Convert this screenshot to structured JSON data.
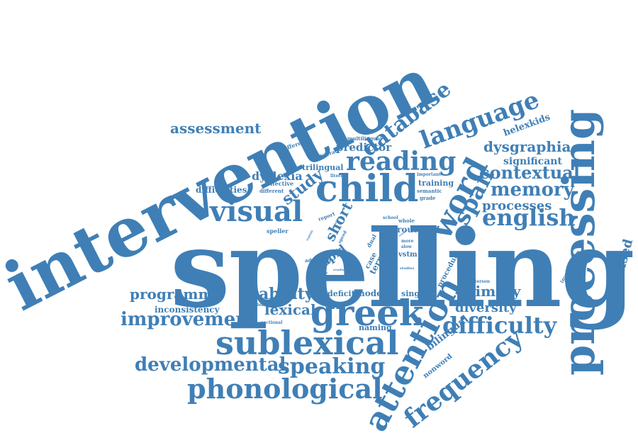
{
  "word_cloud": {
    "color": "#3f7fb6",
    "words": [
      {
        "word_id": "w01",
        "text": "spelling"
      },
      {
        "word_id": "w02",
        "text": "intervention"
      },
      {
        "word_id": "w03",
        "text": "processing"
      },
      {
        "word_id": "w04",
        "text": "child"
      },
      {
        "word_id": "w05",
        "text": "greek"
      },
      {
        "word_id": "w06",
        "text": "sublexical"
      },
      {
        "word_id": "w07",
        "text": "attention"
      },
      {
        "word_id": "w08",
        "text": "word"
      },
      {
        "word_id": "w09",
        "text": "reading"
      },
      {
        "word_id": "w10",
        "text": "language"
      },
      {
        "word_id": "w11",
        "text": "visual"
      },
      {
        "word_id": "w12",
        "text": "phonological"
      },
      {
        "word_id": "w13",
        "text": "frequency"
      },
      {
        "word_id": "w14",
        "text": "database"
      },
      {
        "word_id": "w15",
        "text": "difficulty"
      },
      {
        "word_id": "w16",
        "text": "english"
      },
      {
        "word_id": "w17",
        "text": "speaking"
      },
      {
        "word_id": "w18",
        "text": "developmental"
      },
      {
        "word_id": "w19",
        "text": "improvement"
      },
      {
        "word_id": "w20",
        "text": "span"
      },
      {
        "word_id": "w21",
        "text": "memory"
      },
      {
        "word_id": "w22",
        "text": "contextual"
      },
      {
        "word_id": "w23",
        "text": "automatised"
      },
      {
        "word_id": "w24",
        "text": "dysgraphia"
      },
      {
        "word_id": "w25",
        "text": "assessment"
      },
      {
        "word_id": "w26",
        "text": "programme"
      },
      {
        "word_id": "w27",
        "text": "ability"
      },
      {
        "word_id": "w28",
        "text": "lexical"
      },
      {
        "word_id": "w29",
        "text": "primary"
      },
      {
        "word_id": "w30",
        "text": "diversity"
      },
      {
        "word_id": "w31",
        "text": "dyslexia"
      },
      {
        "word_id": "w32",
        "text": "study"
      },
      {
        "word_id": "w33",
        "text": "processes"
      },
      {
        "word_id": "w34",
        "text": "significant"
      },
      {
        "word_id": "w35",
        "text": "helexkids"
      },
      {
        "word_id": "w36",
        "text": "predictor"
      },
      {
        "word_id": "w37",
        "text": "short"
      },
      {
        "word_id": "w38",
        "text": "rapid"
      },
      {
        "word_id": "w39",
        "text": "bilingual"
      },
      {
        "word_id": "w40",
        "text": "nonword"
      },
      {
        "word_id": "w41",
        "text": "difficulties"
      },
      {
        "word_id": "w42",
        "text": "inconsistency"
      },
      {
        "word_id": "w43",
        "text": "trilingual"
      },
      {
        "word_id": "w44",
        "text": "training"
      },
      {
        "word_id": "w45",
        "text": "route"
      },
      {
        "word_id": "w46",
        "text": "model"
      },
      {
        "word_id": "w47",
        "text": "deficit"
      },
      {
        "word_id": "w48",
        "text": "single"
      },
      {
        "word_id": "w49",
        "text": "naming"
      },
      {
        "word_id": "w50",
        "text": "year"
      },
      {
        "word_id": "w51",
        "text": "term"
      },
      {
        "word_id": "w52",
        "text": "case"
      },
      {
        "word_id": "w53",
        "text": "vstm"
      },
      {
        "word_id": "w54",
        "text": "procedure"
      },
      {
        "word_id": "w55",
        "text": "investigation"
      },
      {
        "word_id": "w56",
        "text": "speller"
      },
      {
        "word_id": "w57",
        "text": "effective"
      },
      {
        "word_id": "w58",
        "text": "different"
      },
      {
        "word_id": "w59",
        "text": "difference"
      },
      {
        "word_id": "w60",
        "text": "multilingual"
      },
      {
        "word_id": "w61",
        "text": "biliterate"
      },
      {
        "word_id": "w62",
        "text": "literacy"
      },
      {
        "word_id": "w63",
        "text": "semantic"
      },
      {
        "word_id": "w64",
        "text": "grade"
      },
      {
        "word_id": "w65",
        "text": "important"
      },
      {
        "word_id": "w66",
        "text": "report"
      },
      {
        "word_id": "w67",
        "text": "speed"
      },
      {
        "word_id": "w68",
        "text": "dual"
      },
      {
        "word_id": "w69",
        "text": "whole"
      },
      {
        "word_id": "w70",
        "text": "school"
      },
      {
        "word_id": "w71",
        "text": "more"
      },
      {
        "word_id": "w72",
        "text": "slow"
      },
      {
        "word_id": "w73",
        "text": "result"
      },
      {
        "word_id": "w74",
        "text": "present"
      },
      {
        "word_id": "w75",
        "text": "studies"
      },
      {
        "word_id": "w76",
        "text": "masterson"
      },
      {
        "word_id": "w77",
        "text": "sectional"
      },
      {
        "word_id": "w78",
        "text": "education"
      },
      {
        "word_id": "w79",
        "text": "advanced"
      },
      {
        "word_id": "w80",
        "text": "task"
      },
      {
        "word_id": "w81",
        "text": "results"
      },
      {
        "word_id": "w82",
        "text": "variable"
      },
      {
        "word_id": "w83",
        "text": "create"
      },
      {
        "word_id": "w84",
        "text": "test"
      },
      {
        "word_id": "w85",
        "text": "explain"
      }
    ]
  }
}
